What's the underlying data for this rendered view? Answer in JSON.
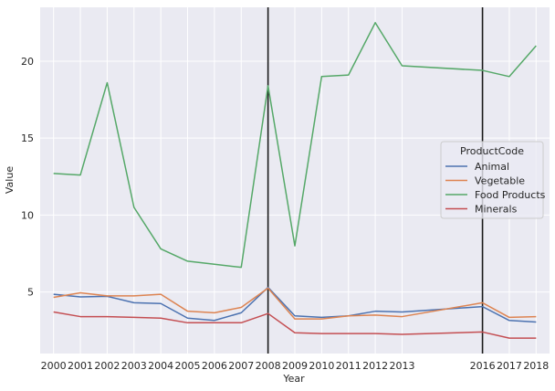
{
  "chart_data": {
    "type": "line",
    "x": [
      2000,
      2001,
      2002,
      2003,
      2004,
      2005,
      2006,
      2007,
      2008,
      2009,
      2010,
      2011,
      2012,
      2013,
      2016,
      2017,
      2018
    ],
    "x_tick_labels": [
      "2000",
      "2001",
      "2002",
      "2003",
      "2004",
      "2005",
      "2006",
      "2007",
      "2008",
      "2009",
      "2010",
      "2011",
      "2012",
      "2013",
      "2016",
      "2017",
      "2018"
    ],
    "y_ticks": [
      5,
      10,
      15,
      20
    ],
    "y_tick_labels": [
      "5",
      "10",
      "15",
      "20"
    ],
    "ylim": [
      1,
      23.5
    ],
    "xlabel": "Year",
    "ylabel": "Value",
    "title": "",
    "grid": true,
    "legend": {
      "title": "ProductCode",
      "position": "center-right"
    },
    "vertical_lines": [
      2008,
      2016
    ],
    "series": [
      {
        "name": "Animal",
        "color": "#4c72b0",
        "values": [
          4.85,
          4.68,
          4.72,
          4.3,
          4.25,
          3.3,
          3.15,
          3.65,
          5.3,
          3.45,
          3.35,
          3.45,
          3.75,
          3.7,
          4.05,
          3.15,
          3.05
        ]
      },
      {
        "name": "Vegetable",
        "color": "#dd8452",
        "values": [
          4.65,
          4.95,
          4.75,
          4.75,
          4.85,
          3.75,
          3.65,
          4.0,
          5.25,
          3.25,
          3.25,
          3.45,
          3.5,
          3.4,
          4.3,
          3.35,
          3.4
        ]
      },
      {
        "name": "Food Products",
        "color": "#55a868",
        "values": [
          12.7,
          12.6,
          18.6,
          10.5,
          7.8,
          7.0,
          6.8,
          6.6,
          18.4,
          8.0,
          19.0,
          19.1,
          22.5,
          19.7,
          19.4,
          19.0,
          21.0
        ]
      },
      {
        "name": "Minerals",
        "color": "#c44e52",
        "values": [
          3.7,
          3.4,
          3.4,
          3.35,
          3.3,
          3.0,
          3.0,
          3.0,
          3.6,
          2.35,
          2.3,
          2.3,
          2.3,
          2.25,
          2.4,
          2.0,
          2.0
        ]
      }
    ]
  }
}
